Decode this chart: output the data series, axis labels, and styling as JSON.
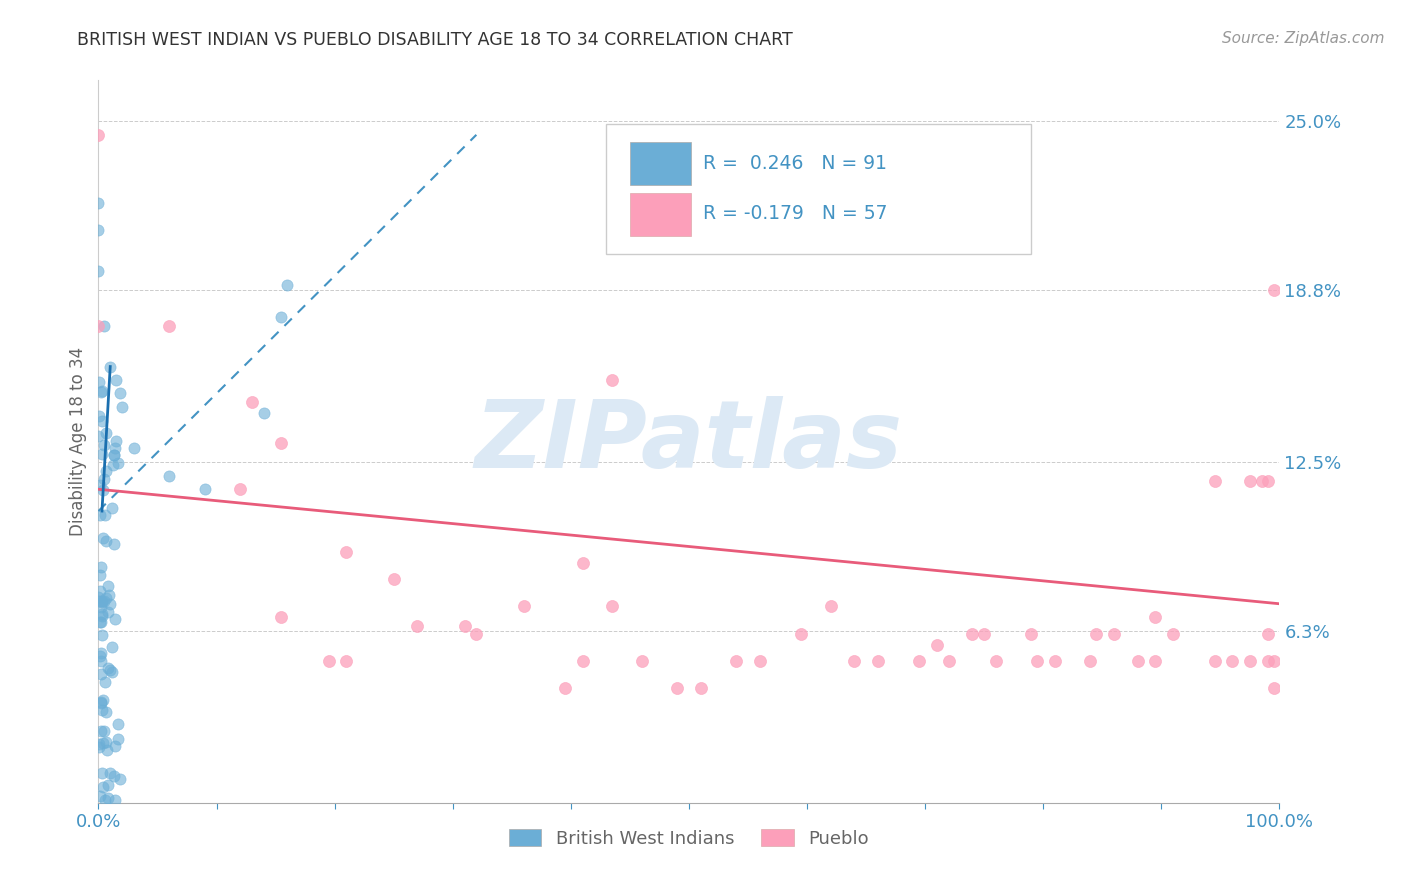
{
  "title": "BRITISH WEST INDIAN VS PUEBLO DISABILITY AGE 18 TO 34 CORRELATION CHART",
  "source_text": "Source: ZipAtlas.com",
  "ylabel": "Disability Age 18 to 34",
  "xlim": [
    0.0,
    1.0
  ],
  "ylim": [
    0.0,
    0.265
  ],
  "ytick_vals": [
    0.0,
    0.063,
    0.125,
    0.188,
    0.25
  ],
  "ytick_labels": [
    "",
    "6.3%",
    "12.5%",
    "18.8%",
    "25.0%"
  ],
  "xtick_vals": [
    0.0,
    0.1,
    0.2,
    0.3,
    0.4,
    0.5,
    0.6,
    0.7,
    0.8,
    0.9,
    1.0
  ],
  "xtick_labels": [
    "0.0%",
    "",
    "",
    "",
    "",
    "",
    "",
    "",
    "",
    "",
    "100.0%"
  ],
  "color_blue": "#6baed6",
  "color_blue_line": "#4393c3",
  "color_pink": "#fc9fba",
  "color_pink_line": "#e85b7a",
  "watermark": "ZIPatlas",
  "watermark_color": "#dce9f5",
  "title_color": "#333333",
  "axis_label_color": "#666666",
  "tick_label_color": "#4393c3",
  "source_color": "#999999",
  "legend_blue_text": "R =  0.246   N = 91",
  "legend_pink_text": "R = -0.179   N = 57",
  "bwi_trend_x": [
    0.0,
    0.32
  ],
  "bwi_trend_y": [
    0.107,
    0.245
  ],
  "pueblo_trend_x": [
    0.0,
    1.0
  ],
  "pueblo_trend_y": [
    0.115,
    0.073
  ],
  "pueblo_x": [
    0.0,
    0.0,
    0.06,
    0.13,
    0.155,
    0.155,
    0.21,
    0.21,
    0.25,
    0.27,
    0.31,
    0.36,
    0.41,
    0.41,
    0.46,
    0.435,
    0.51,
    0.56,
    0.435,
    0.62,
    0.64,
    0.71,
    0.72,
    0.76,
    0.75,
    0.79,
    0.81,
    0.84,
    0.845,
    0.88,
    0.895,
    0.91,
    0.945,
    0.96,
    0.975,
    0.985,
    0.99,
    0.995,
    0.99,
    0.995,
    0.12,
    0.195,
    0.32,
    0.395,
    0.49,
    0.54,
    0.595,
    0.66,
    0.695,
    0.74,
    0.795,
    0.86,
    0.895,
    0.945,
    0.975,
    0.99,
    0.995
  ],
  "pueblo_y": [
    0.245,
    0.175,
    0.175,
    0.147,
    0.132,
    0.068,
    0.092,
    0.052,
    0.082,
    0.065,
    0.065,
    0.072,
    0.088,
    0.052,
    0.052,
    0.072,
    0.042,
    0.052,
    0.155,
    0.072,
    0.052,
    0.058,
    0.052,
    0.052,
    0.062,
    0.062,
    0.052,
    0.052,
    0.062,
    0.052,
    0.068,
    0.062,
    0.118,
    0.052,
    0.118,
    0.118,
    0.118,
    0.052,
    0.062,
    0.188,
    0.115,
    0.052,
    0.062,
    0.042,
    0.042,
    0.052,
    0.062,
    0.052,
    0.052,
    0.062,
    0.052,
    0.062,
    0.052,
    0.052,
    0.052,
    0.052,
    0.042
  ]
}
